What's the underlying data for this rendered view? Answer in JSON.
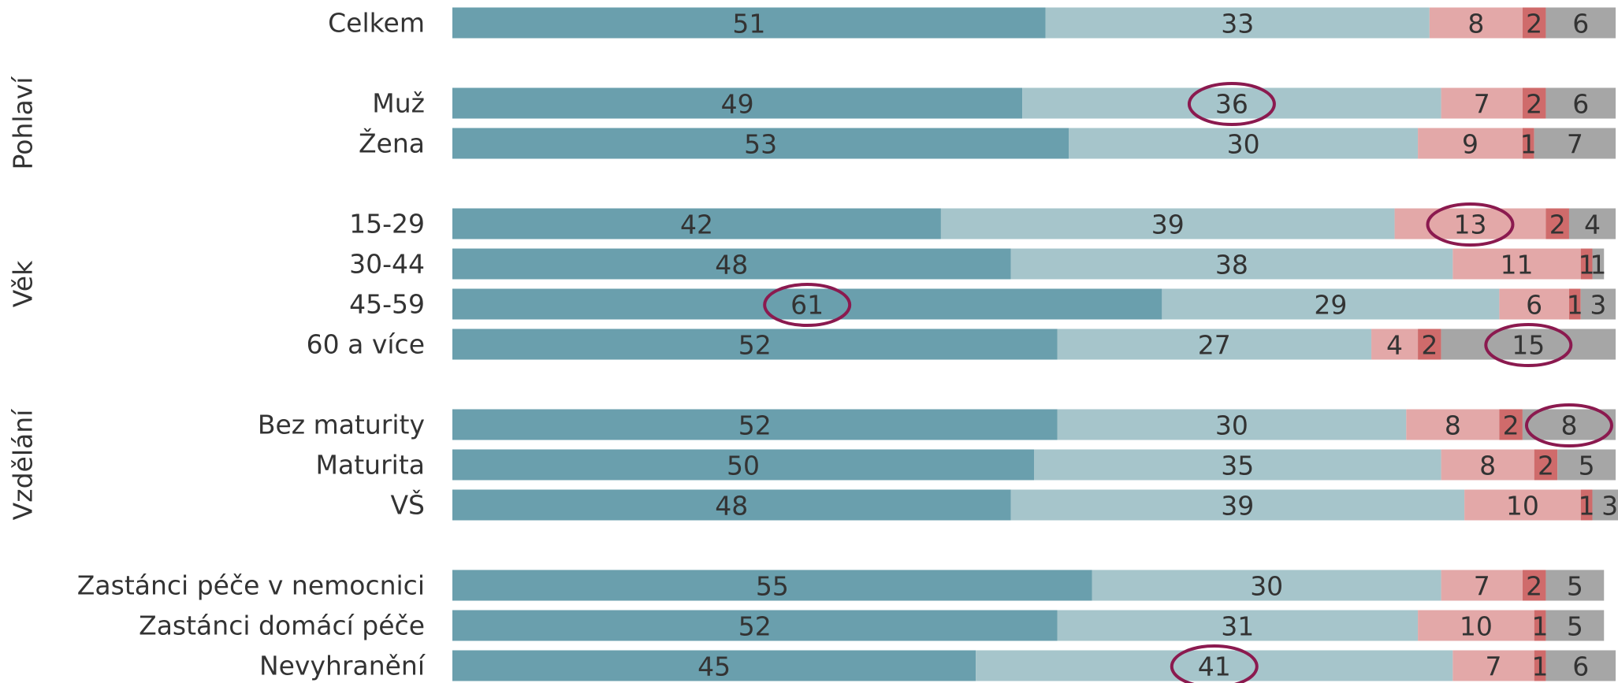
{
  "chart_data": {
    "type": "stacked-bar-horizontal",
    "categories": [
      "Celkem",
      "Muž",
      "Žena",
      "15-29",
      "30-44",
      "45-59",
      "60 a více",
      "Bez maturity",
      "Maturita",
      "VŠ",
      "Zastánci péče v nemocnici",
      "Zastánci domácí péče",
      "Nevyhranění"
    ],
    "category_groups": [
      null,
      "Pohlaví",
      "Pohlaví",
      "Věk",
      "Věk",
      "Věk",
      "Věk",
      "Vzdělání",
      "Vzdělání",
      "Vzdělání",
      null,
      null,
      null
    ],
    "xlim": [
      0,
      100
    ],
    "series": [
      {
        "color": "#6a9fad",
        "values": [
          51,
          49,
          53,
          42,
          48,
          61,
          52,
          52,
          50,
          48,
          55,
          52,
          45
        ]
      },
      {
        "color": "#a6c5cb",
        "values": [
          33,
          36,
          30,
          39,
          38,
          29,
          27,
          30,
          35,
          39,
          30,
          31,
          41
        ]
      },
      {
        "color": "#e3a8a8",
        "values": [
          8,
          7,
          9,
          13,
          11,
          6,
          4,
          8,
          8,
          10,
          7,
          10,
          7
        ]
      },
      {
        "color": "#cf6b6b",
        "values": [
          2,
          2,
          1,
          2,
          1,
          1,
          2,
          2,
          2,
          1,
          2,
          1,
          1
        ]
      },
      {
        "color": "#a6a6a6",
        "values": [
          6,
          6,
          7,
          4,
          1,
          3,
          15,
          8,
          5,
          3,
          5,
          5,
          6
        ]
      }
    ],
    "highlights": [
      {
        "series": 1,
        "category": 1
      },
      {
        "series": 2,
        "category": 3
      },
      {
        "series": 0,
        "category": 5
      },
      {
        "series": 4,
        "category": 6
      },
      {
        "series": 4,
        "category": 7
      },
      {
        "series": 1,
        "category": 12
      }
    ],
    "highlight_color": "#8b1a4f"
  }
}
